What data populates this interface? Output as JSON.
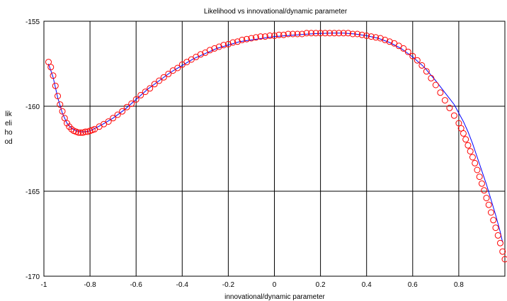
{
  "chart_data": {
    "type": "line",
    "title": "Likelihood vs innovational/dynamic parameter",
    "xlabel": "innovational/dynamic parameter",
    "ylabel_lines": [
      "lik",
      "eli",
      "ho",
      "od"
    ],
    "xlim": [
      -1,
      1
    ],
    "ylim": [
      -170,
      -155
    ],
    "xticks": [
      -1,
      -0.8,
      -0.6,
      -0.4,
      -0.2,
      0,
      0.2,
      0.4,
      0.6,
      0.8
    ],
    "yticks": [
      -155,
      -160,
      -165,
      -170
    ],
    "grid": true,
    "colors": {
      "line": "#0000ff",
      "markers": "#ff0000"
    },
    "series": [
      {
        "style": "line",
        "x": [
          -0.98,
          -0.96,
          -0.94,
          -0.92,
          -0.9,
          -0.88,
          -0.86,
          -0.84,
          -0.82,
          -0.8,
          -0.75,
          -0.7,
          -0.65,
          -0.6,
          -0.55,
          -0.5,
          -0.45,
          -0.4,
          -0.35,
          -0.3,
          -0.25,
          -0.2,
          -0.15,
          -0.1,
          -0.05,
          0.0,
          0.05,
          0.1,
          0.15,
          0.2,
          0.25,
          0.3,
          0.35,
          0.4,
          0.45,
          0.5,
          0.55,
          0.6,
          0.65,
          0.7,
          0.74,
          0.78,
          0.8,
          0.82,
          0.84,
          0.86,
          0.88,
          0.9,
          0.92,
          0.94,
          0.96,
          0.98,
          0.99
        ],
        "y": [
          -157.5,
          -158.3,
          -159.5,
          -160.4,
          -161.0,
          -161.3,
          -161.45,
          -161.5,
          -161.5,
          -161.45,
          -161.1,
          -160.7,
          -160.2,
          -159.6,
          -159.0,
          -158.5,
          -158.0,
          -157.6,
          -157.2,
          -156.9,
          -156.6,
          -156.4,
          -156.2,
          -156.1,
          -156.0,
          -155.9,
          -155.85,
          -155.8,
          -155.75,
          -155.72,
          -155.7,
          -155.7,
          -155.75,
          -155.85,
          -156.0,
          -156.25,
          -156.6,
          -157.1,
          -157.7,
          -158.5,
          -159.2,
          -159.9,
          -160.4,
          -160.9,
          -161.5,
          -162.2,
          -163.0,
          -163.8,
          -164.6,
          -165.5,
          -166.4,
          -167.4,
          -168.0
        ]
      },
      {
        "style": "markers",
        "x": [
          -0.98,
          -0.97,
          -0.96,
          -0.95,
          -0.94,
          -0.93,
          -0.92,
          -0.91,
          -0.9,
          -0.89,
          -0.88,
          -0.87,
          -0.86,
          -0.85,
          -0.84,
          -0.83,
          -0.82,
          -0.81,
          -0.8,
          -0.79,
          -0.78,
          -0.76,
          -0.74,
          -0.72,
          -0.7,
          -0.68,
          -0.66,
          -0.64,
          -0.62,
          -0.6,
          -0.58,
          -0.56,
          -0.54,
          -0.52,
          -0.5,
          -0.48,
          -0.46,
          -0.44,
          -0.42,
          -0.4,
          -0.38,
          -0.36,
          -0.34,
          -0.32,
          -0.3,
          -0.28,
          -0.26,
          -0.24,
          -0.22,
          -0.2,
          -0.18,
          -0.16,
          -0.14,
          -0.12,
          -0.1,
          -0.08,
          -0.06,
          -0.04,
          -0.02,
          0.0,
          0.02,
          0.04,
          0.06,
          0.08,
          0.1,
          0.12,
          0.14,
          0.16,
          0.18,
          0.2,
          0.22,
          0.24,
          0.26,
          0.28,
          0.3,
          0.32,
          0.34,
          0.36,
          0.38,
          0.4,
          0.42,
          0.44,
          0.46,
          0.48,
          0.5,
          0.52,
          0.54,
          0.56,
          0.58,
          0.6,
          0.62,
          0.64,
          0.66,
          0.68,
          0.7,
          0.72,
          0.74,
          0.76,
          0.78,
          0.8,
          0.81,
          0.82,
          0.83,
          0.84,
          0.85,
          0.86,
          0.87,
          0.88,
          0.89,
          0.9,
          0.91,
          0.92,
          0.93,
          0.94,
          0.95,
          0.96,
          0.97,
          0.98,
          0.99,
          1.0
        ],
        "y": [
          -157.4,
          -157.7,
          -158.2,
          -158.8,
          -159.4,
          -159.9,
          -160.3,
          -160.7,
          -161.0,
          -161.2,
          -161.35,
          -161.45,
          -161.5,
          -161.55,
          -161.55,
          -161.55,
          -161.5,
          -161.5,
          -161.45,
          -161.4,
          -161.35,
          -161.2,
          -161.05,
          -160.9,
          -160.7,
          -160.5,
          -160.3,
          -160.05,
          -159.85,
          -159.6,
          -159.35,
          -159.15,
          -158.95,
          -158.7,
          -158.5,
          -158.3,
          -158.1,
          -157.9,
          -157.75,
          -157.55,
          -157.4,
          -157.25,
          -157.1,
          -156.95,
          -156.85,
          -156.7,
          -156.6,
          -156.5,
          -156.4,
          -156.35,
          -156.25,
          -156.2,
          -156.1,
          -156.05,
          -156.0,
          -155.95,
          -155.9,
          -155.9,
          -155.85,
          -155.85,
          -155.8,
          -155.8,
          -155.75,
          -155.75,
          -155.75,
          -155.75,
          -155.7,
          -155.7,
          -155.7,
          -155.7,
          -155.7,
          -155.7,
          -155.7,
          -155.7,
          -155.7,
          -155.7,
          -155.75,
          -155.75,
          -155.8,
          -155.85,
          -155.9,
          -155.95,
          -156.0,
          -156.1,
          -156.2,
          -156.3,
          -156.45,
          -156.6,
          -156.8,
          -157.05,
          -157.3,
          -157.6,
          -157.95,
          -158.35,
          -158.75,
          -159.2,
          -159.65,
          -160.1,
          -160.55,
          -161.0,
          -161.3,
          -161.6,
          -161.95,
          -162.3,
          -162.65,
          -163.0,
          -163.35,
          -163.75,
          -164.15,
          -164.55,
          -164.95,
          -165.4,
          -165.8,
          -166.25,
          -166.7,
          -167.15,
          -167.6,
          -168.05,
          -168.55,
          -169.0
        ]
      }
    ]
  }
}
